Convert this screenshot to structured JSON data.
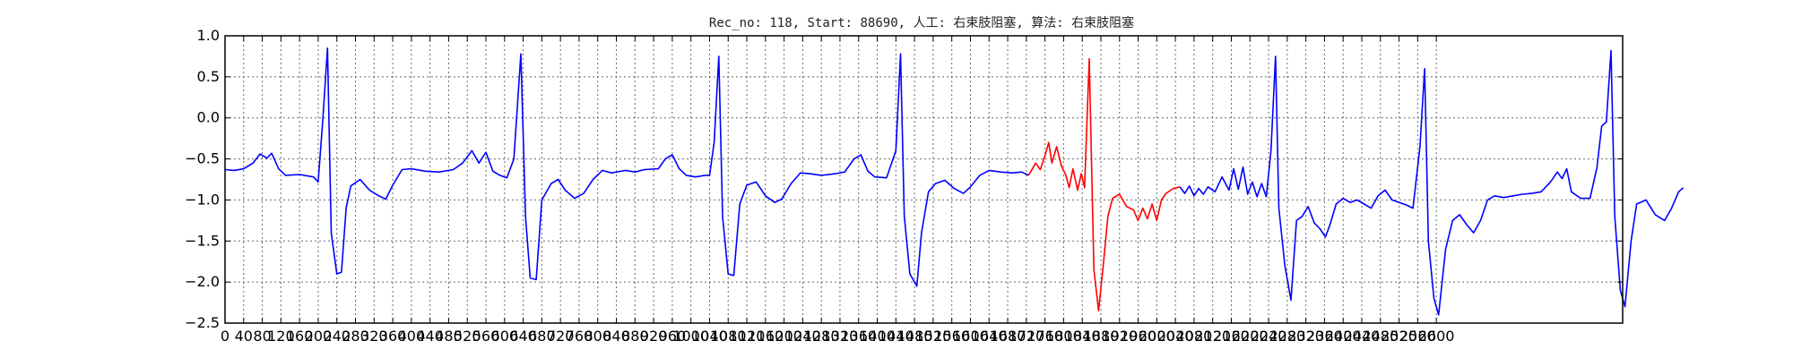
{
  "chart_data": {
    "type": "line",
    "title": "Rec_no: 118, Start: 88690, 人工: 右束肢阻塞, 算法: 右束肢阻塞",
    "xlabel": "",
    "ylabel": "",
    "xlim": [
      0,
      3000
    ],
    "ylim": [
      -2.5,
      1.0
    ],
    "grid": true,
    "x_tick_step": 40,
    "x_tick_labels": [
      "0",
      "40",
      "80",
      "120",
      "160",
      "200",
      "240",
      "280",
      "320",
      "360",
      "400",
      "440",
      "480",
      "520",
      "560",
      "600",
      "640",
      "680",
      "720",
      "760",
      "800",
      "840",
      "880",
      "920",
      "960",
      "1000",
      "1040",
      "1080",
      "1120",
      "1160",
      "1200",
      "1240",
      "1280",
      "1320",
      "1360",
      "1400",
      "1440",
      "1480",
      "1520",
      "1560",
      "1600",
      "1640",
      "1680",
      "1720",
      "1760",
      "1800",
      "1840",
      "1880",
      "1920",
      "1960",
      "2000",
      "2040",
      "2080",
      "2120",
      "2160",
      "2200",
      "2240",
      "2280",
      "2320",
      "2360",
      "2400",
      "2440",
      "2480",
      "2520",
      "2560",
      "2600"
    ],
    "y_ticks": [
      1.0,
      0.5,
      0.0,
      -0.5,
      -1.0,
      -1.5,
      -2.0,
      -2.5
    ],
    "y_tick_labels": [
      "1.0",
      "0.5",
      "0.0",
      "−0.5",
      "−1.0",
      "−1.5",
      "−2.0",
      "−2.5"
    ],
    "series_colors": {
      "normal": "#0000ff",
      "highlight": "#ff0000"
    },
    "series": [
      {
        "color": "normal",
        "points": [
          [
            0,
            -0.63
          ],
          [
            20,
            -0.64
          ],
          [
            40,
            -0.62
          ],
          [
            60,
            -0.55
          ],
          [
            75,
            -0.44
          ],
          [
            90,
            -0.49
          ],
          [
            100,
            -0.43
          ],
          [
            115,
            -0.62
          ],
          [
            130,
            -0.7
          ],
          [
            160,
            -0.69
          ],
          [
            190,
            -0.72
          ],
          [
            200,
            -0.78
          ],
          [
            210,
            -0.02
          ],
          [
            220,
            0.85
          ],
          [
            228,
            -1.4
          ],
          [
            240,
            -1.9
          ],
          [
            250,
            -1.88
          ],
          [
            260,
            -1.1
          ],
          [
            270,
            -0.83
          ],
          [
            290,
            -0.75
          ],
          [
            310,
            -0.88
          ],
          [
            330,
            -0.95
          ],
          [
            345,
            -0.99
          ],
          [
            360,
            -0.82
          ],
          [
            380,
            -0.63
          ],
          [
            400,
            -0.62
          ],
          [
            430,
            -0.65
          ],
          [
            460,
            -0.66
          ],
          [
            490,
            -0.63
          ],
          [
            510,
            -0.55
          ],
          [
            530,
            -0.4
          ],
          [
            545,
            -0.55
          ],
          [
            560,
            -0.42
          ],
          [
            575,
            -0.65
          ],
          [
            590,
            -0.7
          ],
          [
            605,
            -0.73
          ],
          [
            620,
            -0.5
          ],
          [
            635,
            0.78
          ],
          [
            645,
            -1.2
          ],
          [
            655,
            -1.95
          ],
          [
            668,
            -1.97
          ],
          [
            680,
            -1.0
          ],
          [
            700,
            -0.8
          ],
          [
            715,
            -0.75
          ],
          [
            730,
            -0.88
          ],
          [
            750,
            -0.98
          ],
          [
            770,
            -0.92
          ],
          [
            790,
            -0.75
          ],
          [
            810,
            -0.64
          ],
          [
            830,
            -0.67
          ],
          [
            860,
            -0.64
          ],
          [
            880,
            -0.66
          ],
          [
            900,
            -0.63
          ],
          [
            930,
            -0.62
          ],
          [
            945,
            -0.5
          ],
          [
            960,
            -0.45
          ],
          [
            975,
            -0.62
          ],
          [
            990,
            -0.7
          ],
          [
            1010,
            -0.72
          ],
          [
            1030,
            -0.7
          ],
          [
            1040,
            -0.7
          ],
          [
            1050,
            -0.3
          ],
          [
            1060,
            0.75
          ],
          [
            1068,
            -1.2
          ],
          [
            1080,
            -1.9
          ],
          [
            1092,
            -1.92
          ],
          [
            1105,
            -1.05
          ],
          [
            1120,
            -0.82
          ],
          [
            1140,
            -0.78
          ],
          [
            1160,
            -0.95
          ],
          [
            1180,
            -1.03
          ],
          [
            1195,
            -0.99
          ],
          [
            1215,
            -0.8
          ],
          [
            1235,
            -0.67
          ],
          [
            1255,
            -0.68
          ],
          [
            1280,
            -0.7
          ],
          [
            1310,
            -0.68
          ],
          [
            1330,
            -0.66
          ],
          [
            1350,
            -0.5
          ],
          [
            1365,
            -0.45
          ],
          [
            1380,
            -0.65
          ],
          [
            1395,
            -0.72
          ],
          [
            1420,
            -0.73
          ],
          [
            1440,
            -0.4
          ],
          [
            1450,
            0.78
          ],
          [
            1458,
            -1.2
          ],
          [
            1470,
            -1.9
          ],
          [
            1485,
            -2.05
          ],
          [
            1495,
            -1.4
          ],
          [
            1510,
            -0.9
          ],
          [
            1525,
            -0.8
          ],
          [
            1545,
            -0.76
          ],
          [
            1565,
            -0.86
          ],
          [
            1585,
            -0.92
          ],
          [
            1600,
            -0.84
          ],
          [
            1620,
            -0.7
          ],
          [
            1640,
            -0.64
          ],
          [
            1665,
            -0.66
          ],
          [
            1690,
            -0.67
          ],
          [
            1710,
            -0.66
          ],
          [
            1725,
            -0.7
          ]
        ]
      },
      {
        "color": "highlight",
        "points": [
          [
            1725,
            -0.7
          ],
          [
            1740,
            -0.55
          ],
          [
            1750,
            -0.63
          ],
          [
            1760,
            -0.46
          ],
          [
            1768,
            -0.3
          ],
          [
            1775,
            -0.55
          ],
          [
            1785,
            -0.35
          ],
          [
            1795,
            -0.58
          ],
          [
            1805,
            -0.7
          ],
          [
            1812,
            -0.85
          ],
          [
            1820,
            -0.62
          ],
          [
            1830,
            -0.88
          ],
          [
            1838,
            -0.68
          ],
          [
            1845,
            -0.85
          ],
          [
            1855,
            0.72
          ],
          [
            1865,
            -1.85
          ],
          [
            1875,
            -2.35
          ],
          [
            1885,
            -1.8
          ],
          [
            1895,
            -1.2
          ],
          [
            1905,
            -0.98
          ],
          [
            1920,
            -0.93
          ],
          [
            1935,
            -1.08
          ],
          [
            1950,
            -1.12
          ],
          [
            1960,
            -1.25
          ],
          [
            1970,
            -1.1
          ],
          [
            1980,
            -1.23
          ],
          [
            1990,
            -1.05
          ],
          [
            2000,
            -1.25
          ],
          [
            2010,
            -1.0
          ],
          [
            2020,
            -0.92
          ],
          [
            2035,
            -0.86
          ],
          [
            2050,
            -0.84
          ]
        ]
      },
      {
        "color": "normal",
        "points": [
          [
            2050,
            -0.84
          ],
          [
            2060,
            -0.92
          ],
          [
            2070,
            -0.83
          ],
          [
            2080,
            -0.95
          ],
          [
            2090,
            -0.86
          ],
          [
            2100,
            -0.93
          ],
          [
            2110,
            -0.84
          ],
          [
            2125,
            -0.9
          ],
          [
            2140,
            -0.72
          ],
          [
            2155,
            -0.88
          ],
          [
            2165,
            -0.62
          ],
          [
            2175,
            -0.87
          ],
          [
            2185,
            -0.6
          ],
          [
            2195,
            -0.93
          ],
          [
            2205,
            -0.78
          ],
          [
            2215,
            -0.96
          ],
          [
            2225,
            -0.8
          ],
          [
            2235,
            -0.96
          ],
          [
            2245,
            -0.4
          ],
          [
            2255,
            0.75
          ],
          [
            2262,
            -1.1
          ],
          [
            2275,
            -1.8
          ],
          [
            2288,
            -2.22
          ],
          [
            2300,
            -1.25
          ],
          [
            2312,
            -1.2
          ],
          [
            2325,
            -1.08
          ],
          [
            2338,
            -1.28
          ],
          [
            2350,
            -1.35
          ],
          [
            2362,
            -1.45
          ],
          [
            2372,
            -1.3
          ],
          [
            2385,
            -1.05
          ],
          [
            2400,
            -0.98
          ],
          [
            2415,
            -1.03
          ],
          [
            2430,
            -1.0
          ],
          [
            2445,
            -1.05
          ],
          [
            2460,
            -1.1
          ],
          [
            2475,
            -0.95
          ],
          [
            2490,
            -0.88
          ],
          [
            2505,
            -1.0
          ],
          [
            2520,
            -1.03
          ],
          [
            2535,
            -1.06
          ],
          [
            2550,
            -1.1
          ],
          [
            2565,
            -0.35
          ],
          [
            2575,
            0.6
          ],
          [
            2583,
            -1.5
          ],
          [
            2595,
            -2.2
          ],
          [
            2605,
            -2.4
          ],
          [
            2620,
            -1.6
          ],
          [
            2635,
            -1.25
          ],
          [
            2650,
            -1.18
          ],
          [
            2665,
            -1.3
          ],
          [
            2680,
            -1.4
          ],
          [
            2695,
            -1.25
          ],
          [
            2710,
            -1.0
          ],
          [
            2725,
            -0.95
          ],
          [
            2745,
            -0.97
          ],
          [
            2765,
            -0.95
          ],
          [
            2785,
            -0.93
          ],
          [
            2805,
            -0.92
          ],
          [
            2825,
            -0.9
          ],
          [
            2845,
            -0.78
          ],
          [
            2860,
            -0.66
          ],
          [
            2870,
            -0.74
          ],
          [
            2880,
            -0.62
          ],
          [
            2890,
            -0.9
          ],
          [
            2910,
            -0.98
          ],
          [
            2930,
            -0.98
          ],
          [
            2945,
            -0.6
          ],
          [
            2955,
            -0.1
          ],
          [
            2965,
            -0.05
          ],
          [
            2975,
            0.82
          ],
          [
            2983,
            -1.2
          ],
          [
            2995,
            -2.1
          ],
          [
            3005,
            -2.3
          ],
          [
            3018,
            -1.5
          ],
          [
            3030,
            -1.05
          ],
          [
            3050,
            -1.0
          ],
          [
            3070,
            -1.18
          ],
          [
            3090,
            -1.25
          ],
          [
            3105,
            -1.1
          ],
          [
            3120,
            -0.9
          ],
          [
            3130,
            -0.85
          ]
        ]
      }
    ]
  }
}
